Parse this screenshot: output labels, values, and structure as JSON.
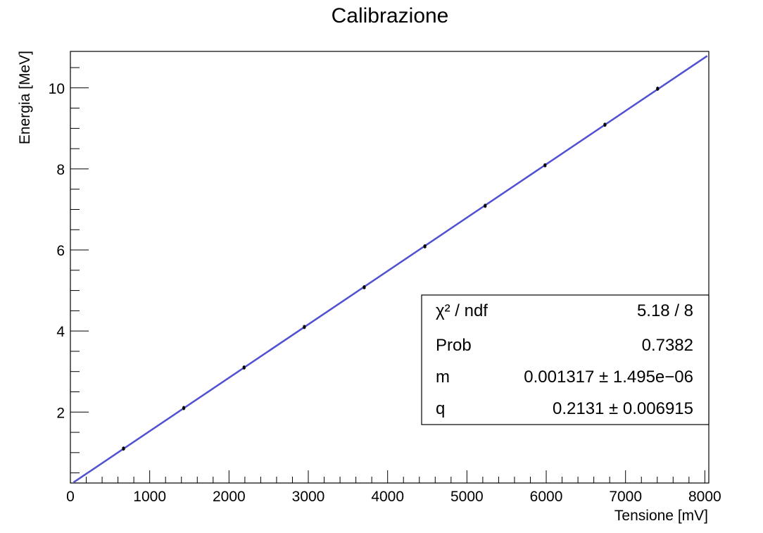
{
  "chart_data": {
    "type": "scatter",
    "title": "Calibrazione",
    "xlabel": "Tensione [mV]",
    "ylabel": "Energia [MeV]",
    "xlim": [
      0,
      8050
    ],
    "ylim": [
      0.25,
      10.9
    ],
    "x_ticks": [
      0,
      1000,
      2000,
      3000,
      4000,
      5000,
      6000,
      7000,
      8000
    ],
    "y_ticks": [
      2,
      4,
      6,
      8,
      10
    ],
    "grid": false,
    "points": [
      {
        "x": 670,
        "y": 1.1,
        "yerr": 0.05
      },
      {
        "x": 1430,
        "y": 2.1,
        "yerr": 0.05
      },
      {
        "x": 2190,
        "y": 3.1,
        "yerr": 0.05
      },
      {
        "x": 2950,
        "y": 4.1,
        "yerr": 0.05
      },
      {
        "x": 3705,
        "y": 5.08,
        "yerr": 0.05
      },
      {
        "x": 4470,
        "y": 6.09,
        "yerr": 0.05
      },
      {
        "x": 5230,
        "y": 7.09,
        "yerr": 0.05
      },
      {
        "x": 5985,
        "y": 8.09,
        "yerr": 0.05
      },
      {
        "x": 6740,
        "y": 9.09,
        "yerr": 0.05
      },
      {
        "x": 7405,
        "y": 9.98,
        "yerr": 0.05
      }
    ],
    "fit": {
      "slope": 0.001317,
      "intercept": 0.2131,
      "color": "#5050d2",
      "x_range": [
        40,
        8030
      ]
    },
    "marker_color": "#000000",
    "stats_box": {
      "placement": "bottom-right",
      "rows": [
        {
          "label": "χ² / ndf",
          "value": "5.18 / 8"
        },
        {
          "label": "Prob",
          "value": "0.7382"
        },
        {
          "label": "m",
          "value": "0.001317  ± 1.495e−06"
        },
        {
          "label": "q",
          "value": "0.2131 ± 0.006915"
        }
      ]
    }
  }
}
